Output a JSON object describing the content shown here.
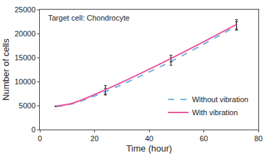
{
  "chart_data": {
    "type": "line",
    "x_label": "Time (hour)",
    "y_label": "Number of cells",
    "annotations": [
      "Target cell: Chondrocyte"
    ],
    "x": [
      6,
      12,
      24,
      48,
      72
    ],
    "series": [
      {
        "name": "Without vibration",
        "color": "#6ab4e6",
        "line_style": "dashed",
        "values": [
          4800,
          5400,
          7900,
          14200,
          21600
        ],
        "errors": [
          0,
          0,
          700,
          800,
          900
        ]
      },
      {
        "name": "With vibration",
        "color": "#e8559a",
        "line_style": "solid",
        "values": [
          4900,
          5500,
          8300,
          14800,
          21900
        ],
        "errors": [
          0,
          0,
          900,
          700,
          1000
        ]
      }
    ],
    "xlim": [
      0,
      80
    ],
    "xticks": [
      0,
      20,
      40,
      60,
      80
    ],
    "ylim": [
      0,
      25000
    ],
    "yticks": [
      0,
      5000,
      10000,
      15000,
      20000,
      25000
    ],
    "grid": false,
    "legend": "lower right"
  }
}
